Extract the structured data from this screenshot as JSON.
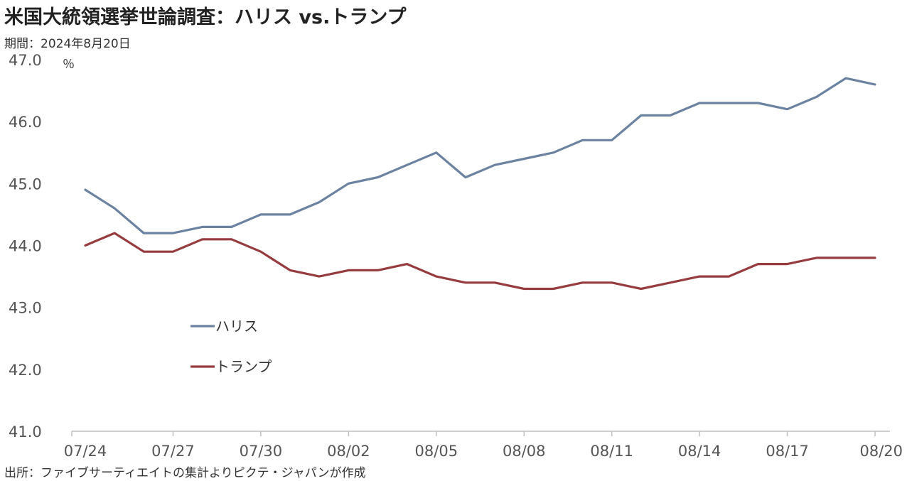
{
  "header": {
    "title": "米国大統領選挙世論調査：ハリス vs.トランプ",
    "period": "期間：2024年8月20日",
    "unit": "％"
  },
  "footer": {
    "source": "出所：ファイブサーティエイトの集計よりピクテ・ジャパンが作成"
  },
  "colors": {
    "harris": "#6b82a0",
    "trump": "#963c3f",
    "axis": "#bfbfbf"
  },
  "chart_data": {
    "type": "line",
    "x": [
      "07/24",
      "07/25",
      "07/26",
      "07/27",
      "07/28",
      "07/29",
      "07/30",
      "07/31",
      "08/01",
      "08/02",
      "08/03",
      "08/04",
      "08/05",
      "08/06",
      "08/07",
      "08/08",
      "08/09",
      "08/10",
      "08/11",
      "08/12",
      "08/13",
      "08/14",
      "08/15",
      "08/16",
      "08/17",
      "08/18",
      "08/19",
      "08/20"
    ],
    "xtick_labels": [
      "07/24",
      "07/27",
      "07/30",
      "08/02",
      "08/05",
      "08/08",
      "08/11",
      "08/14",
      "08/17",
      "08/20"
    ],
    "ylim": [
      41.0,
      47.0
    ],
    "ytick_labels": [
      "41.0",
      "42.0",
      "43.0",
      "44.0",
      "45.0",
      "46.0",
      "47.0"
    ],
    "grid": false,
    "legend_position": "lower-left",
    "series": [
      {
        "name": "ハリス",
        "values": [
          44.9,
          44.6,
          44.2,
          44.2,
          44.3,
          44.3,
          44.5,
          44.5,
          44.7,
          45.0,
          45.1,
          45.3,
          45.5,
          45.1,
          45.3,
          45.4,
          45.5,
          45.7,
          45.7,
          46.1,
          46.1,
          46.3,
          46.3,
          46.3,
          46.2,
          46.4,
          46.7,
          46.6
        ]
      },
      {
        "name": "トランプ",
        "values": [
          44.0,
          44.2,
          43.9,
          43.9,
          44.1,
          44.1,
          43.9,
          43.6,
          43.5,
          43.6,
          43.6,
          43.7,
          43.5,
          43.4,
          43.4,
          43.3,
          43.3,
          43.4,
          43.4,
          43.3,
          43.4,
          43.5,
          43.5,
          43.7,
          43.7,
          43.8,
          43.8,
          43.8
        ]
      }
    ]
  }
}
